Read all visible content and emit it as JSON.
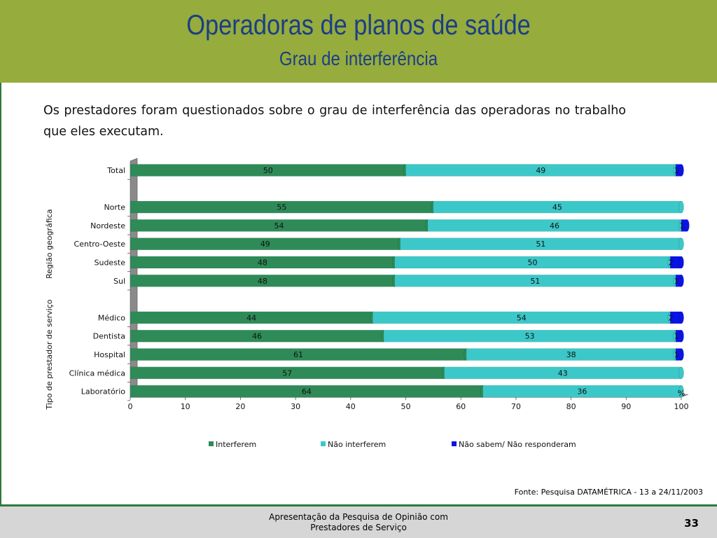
{
  "slide": {
    "title": "Operadoras de planos de saúde",
    "subtitle": "Grau de interferência",
    "intro": "Os prestadores foram questionados sobre o grau de interferência das operadoras no trabalho que eles executam.",
    "source": "Fonte: Pesquisa DATAMÉTRICA - 13 a 24/11/2003",
    "footer_line1": "Apresentação da Pesquisa de Opinião com",
    "footer_line2": "Prestadores de Serviço",
    "page_number": "33"
  },
  "chart_data": {
    "type": "bar",
    "orientation": "horizontal",
    "stacked": true,
    "categories": [
      "Total",
      "Norte",
      "Nordeste",
      "Centro-Oeste",
      "Sudeste",
      "Sul",
      "Médico",
      "Dentista",
      "Hospital",
      "Clínica médica",
      "Laboratório"
    ],
    "groups": [
      {
        "label": "",
        "categories": [
          "Total"
        ]
      },
      {
        "label": "Região geográfica",
        "categories": [
          "Norte",
          "Nordeste",
          "Centro-Oeste",
          "Sudeste",
          "Sul"
        ]
      },
      {
        "label": "Tipo de prestador de serviço",
        "categories": [
          "Médico",
          "Dentista",
          "Hospital",
          "Clínica médica",
          "Laboratório"
        ]
      }
    ],
    "series": [
      {
        "name": "Interferem",
        "color": "#2e8b57",
        "values": [
          50,
          55,
          54,
          49,
          48,
          48,
          44,
          46,
          61,
          57,
          64
        ]
      },
      {
        "name": "Não interferem",
        "color": "#3cc8c8",
        "values": [
          49,
          45,
          46,
          51,
          50,
          51,
          54,
          53,
          38,
          43,
          36
        ]
      },
      {
        "name": "Não sabem/ Não responderam",
        "color": "#0a14e6",
        "values": [
          1,
          0,
          1,
          0,
          2,
          1,
          2,
          1,
          1,
          0,
          0
        ]
      }
    ],
    "xlim": [
      0,
      100
    ],
    "xticks": [
      0,
      10,
      20,
      30,
      40,
      50,
      60,
      70,
      80,
      90,
      100
    ],
    "unit_label": "%",
    "legend_position": "bottom",
    "grid": false
  }
}
